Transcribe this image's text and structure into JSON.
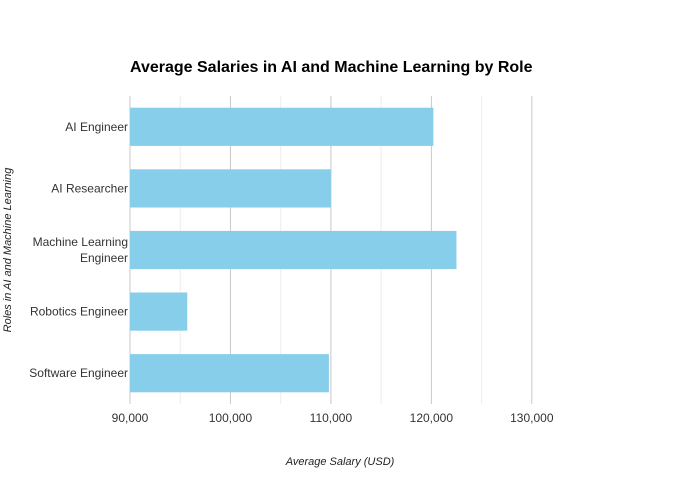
{
  "chart_data": {
    "type": "bar",
    "orientation": "horizontal",
    "title": "Average Salaries in AI and Machine Learning by Role",
    "xlabel": "Average Salary (USD)",
    "ylabel": "Roles in AI and Machine Learning",
    "categories": [
      "AI Engineer",
      "AI Researcher",
      "Machine Learning Engineer",
      "Robotics Engineer",
      "Software Engineer"
    ],
    "category_lines": [
      [
        "AI Engineer"
      ],
      [
        "AI Researcher"
      ],
      [
        "Machine Learning",
        "Engineer"
      ],
      [
        "Robotics Engineer"
      ],
      [
        "Software Engineer"
      ]
    ],
    "values": [
      120200,
      110000,
      122500,
      95700,
      109800
    ],
    "xlim": [
      90000,
      134000
    ],
    "xticks": [
      90000,
      100000,
      110000,
      120000,
      130000
    ],
    "xtick_labels": [
      "90,000",
      "100,000",
      "110,000",
      "120,000",
      "130,000"
    ],
    "grid": true,
    "bar_color": "#87ceeb"
  }
}
